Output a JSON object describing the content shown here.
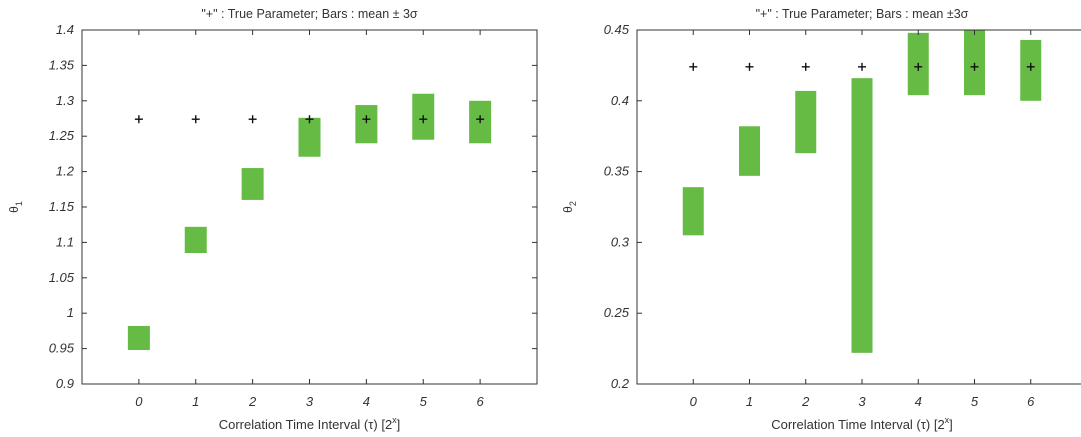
{
  "chart_data": [
    {
      "type": "bar",
      "title": "\"+\" : True Parameter; Bars : mean ± 3σ",
      "xlabel": "Correlation Time Interval (τ) [2",
      "xlabel_sup": "x",
      "xlabel_end": "]",
      "ylabel": "θ",
      "ylabel_sub": "1",
      "categories": [
        "0",
        "1",
        "2",
        "3",
        "4",
        "5",
        "6"
      ],
      "xlim": [
        -1,
        7
      ],
      "ylim": [
        0.9,
        1.4
      ],
      "yticks": [
        "0.9",
        "0.95",
        "1",
        "1.05",
        "1.1",
        "1.15",
        "1.2",
        "1.25",
        "1.3",
        "1.35",
        "1.4"
      ],
      "series": [
        {
          "low": [
            0.948,
            1.085,
            1.16,
            1.221,
            1.24,
            1.245,
            1.24
          ],
          "high": [
            0.982,
            1.122,
            1.205,
            1.276,
            1.294,
            1.31,
            1.3
          ]
        }
      ],
      "true_parameter": [
        1.274,
        1.274,
        1.274,
        1.274,
        1.274,
        1.274,
        1.274
      ],
      "bar_color": "#66bb44",
      "grid": false
    },
    {
      "type": "bar",
      "title": "\"+\" : True Parameter; Bars : mean ±3σ",
      "xlabel": "Correlation Time Interval (τ) [2",
      "xlabel_sup": "x",
      "xlabel_end": "]",
      "ylabel": "θ",
      "ylabel_sub": "2",
      "categories": [
        "0",
        "1",
        "2",
        "3",
        "4",
        "5",
        "6"
      ],
      "xlim": [
        -1,
        7
      ],
      "ylim": [
        0.2,
        0.45
      ],
      "yticks": [
        "0.2",
        "0.25",
        "0.3",
        "0.35",
        "0.4",
        "0.45"
      ],
      "series": [
        {
          "low": [
            0.305,
            0.347,
            0.363,
            0.222,
            0.404,
            0.404,
            0.4
          ],
          "high": [
            0.339,
            0.382,
            0.407,
            0.416,
            0.448,
            0.45,
            0.443
          ]
        }
      ],
      "true_parameter": [
        0.424,
        0.424,
        0.424,
        0.424,
        0.424,
        0.424,
        0.424
      ],
      "bar_color": "#66bb44",
      "grid": false
    }
  ]
}
